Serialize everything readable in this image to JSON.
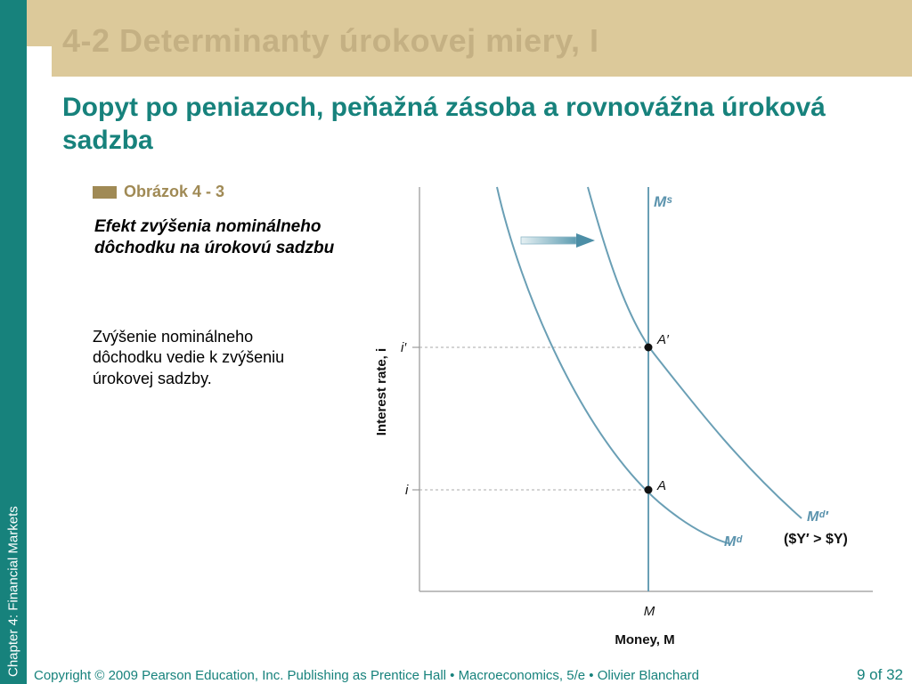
{
  "sidebar": {
    "label": "Chapter 4:  Financial Markets"
  },
  "header": {
    "title": "4-2  Determinanty úrokovej miery, I"
  },
  "subtitle": "Dopyt po peniazoch, peňažná zásoba a rovnovážna úroková sadzba",
  "figure": {
    "label": "Obrázok  4 - 3",
    "caption": "Efekt zvýšenia nominálneho dôchodku na úrokovú sadzbu",
    "description": "Zvýšenie nominálneho dôchodku vedie k zvýšeniu úrokovej sadzby."
  },
  "colors": {
    "teal": "#17827c",
    "gold": "#a08a55",
    "curve": "#6a9fb5",
    "axis": "#999999"
  },
  "chart_data": {
    "type": "line",
    "xlabel": "Money, M",
    "ylabel": "Interest rate, i",
    "x_ticks": [
      "M"
    ],
    "y_ticks": [
      "i′",
      "i"
    ],
    "series": [
      {
        "name": "Mˢ",
        "kind": "money-supply-vertical"
      },
      {
        "name": "Mᵈ",
        "kind": "money-demand-initial"
      },
      {
        "name": "Mᵈ′",
        "kind": "money-demand-shifted"
      }
    ],
    "points": [
      {
        "label": "A′",
        "x": "M",
        "y": "i′"
      },
      {
        "label": "A",
        "x": "M",
        "y": "i"
      }
    ],
    "annotations": [
      "($Y′ > $Y)"
    ],
    "shift_direction": "right"
  },
  "footer": {
    "copyright": "Copyright © 2009 Pearson Education, Inc. Publishing as Prentice Hall  •  Macroeconomics, 5/e  •  Olivier Blanchard",
    "page": "9 of 32"
  }
}
